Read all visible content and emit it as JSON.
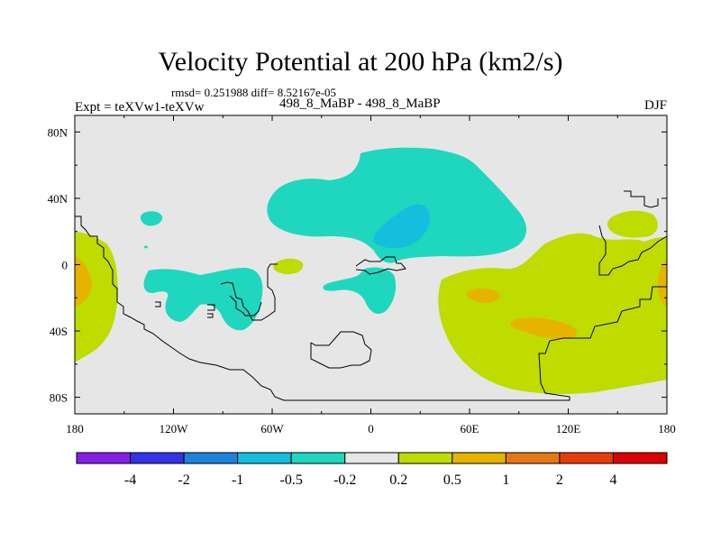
{
  "title": "Velocity Potential at 200 hPa (km2/s)",
  "stats_line": "rmsd= 0.251988 diff= 8.52167e-05",
  "expt_label": "Expt = teXVw1-teXVw",
  "case_label": "498_8_MaBP - 498_8_MaBP",
  "season_label": "DJF",
  "chart_data": {
    "type": "heatmap",
    "title": "Velocity Potential at 200 hPa (km2/s)",
    "projection": "cylindrical equidistant",
    "xlim": [
      -180,
      180
    ],
    "ylim": [
      -90,
      90
    ],
    "x_ticks": [
      {
        "value": -180,
        "label": "180"
      },
      {
        "value": -120,
        "label": "120W"
      },
      {
        "value": -60,
        "label": "60W"
      },
      {
        "value": 0,
        "label": "0"
      },
      {
        "value": 60,
        "label": "60E"
      },
      {
        "value": 120,
        "label": "120E"
      },
      {
        "value": 180,
        "label": "180"
      }
    ],
    "y_ticks": [
      {
        "value": 80,
        "label": "80N"
      },
      {
        "value": 40,
        "label": "40N"
      },
      {
        "value": 0,
        "label": "0"
      },
      {
        "value": -40,
        "label": "40S"
      },
      {
        "value": -80,
        "label": "80S"
      }
    ],
    "levels": [
      {
        "value": -4,
        "label": "-4"
      },
      {
        "value": -2,
        "label": "-2"
      },
      {
        "value": -1,
        "label": "-1"
      },
      {
        "value": -0.5,
        "label": "-0.5"
      },
      {
        "value": -0.2,
        "label": "-0.2"
      },
      {
        "value": 0.2,
        "label": "0.2"
      },
      {
        "value": 0.5,
        "label": "0.5"
      },
      {
        "value": 1,
        "label": "1"
      },
      {
        "value": 2,
        "label": "2"
      },
      {
        "value": 4,
        "label": "4"
      }
    ],
    "colors": [
      "#8a1ee6",
      "#3232e6",
      "#1e82dc",
      "#14bedc",
      "#1ed7be",
      "#e6e6e6",
      "#bedc00",
      "#e6b400",
      "#e67814",
      "#e63c0a",
      "#dc0000"
    ],
    "background_value_range": [
      -0.2,
      0.2
    ],
    "regions": [
      {
        "name": "n-atlantic-africa-negative",
        "level_range": [
          -0.5,
          -0.2
        ],
        "lon_center": -5,
        "lat_center": 40
      },
      {
        "name": "n-africa-core-negative",
        "level_range": [
          -1,
          -0.5
        ],
        "lon_center": 10,
        "lat_center": 25
      },
      {
        "name": "south-america-negative",
        "level_range": [
          -0.5,
          -0.2
        ],
        "lon_center": -75,
        "lat_center": -20
      },
      {
        "name": "pacific-positive",
        "level_range": [
          0.2,
          0.5
        ],
        "lon_center": 120,
        "lat_center": -20
      },
      {
        "name": "indian-ocean-max",
        "level_range": [
          0.5,
          1
        ],
        "lon_center": 100,
        "lat_center": -35
      }
    ]
  }
}
